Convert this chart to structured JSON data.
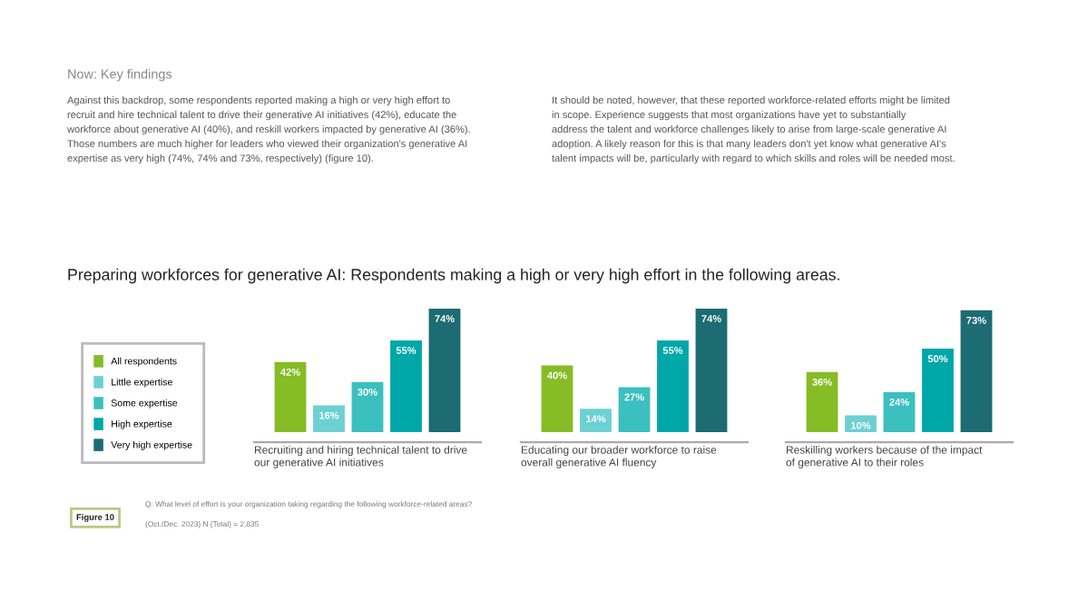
{
  "chart_data": [
    {
      "type": "bar",
      "title": "Preparing workforces for generative AI: Respondents making a high or very high effort in the following areas.",
      "annotations": [
        "Now: Key findings",
        "Against this backdrop, some respondents reported making a high or very high effort to\nrecruit and hire technical talent to drive their generative AI initiatives (42%), educate the\nworkforce about generative AI (40%), and reskill workers impacted by generative AI (36%).\nThose numbers are much higher for leaders who viewed their organization's generative AI\nexpertise as very high (74%, 74% and 73%, respectively) (figure 10).",
        "It should be noted, however, that these reported workforce-related efforts might be limited\nin scope. Experience suggests that most organizations have yet to substantially\naddress the talent and workforce challenges likely to arise from large-scale generative AI\nadoption. A likely reason for this is that many leaders don't yet know what generative AI's\ntalent impacts will be, particularly with regard to which skills and roles will be needed most.",
        "Figure 10",
        "Q: What level of effort is your organization taking regarding the following workforce-related areas?",
        "(Oct./Dec. 2023) N (Total) = 2,835"
      ],
      "categories": [
        null
      ],
      "xlabel": "Recruiting and hiring technical talent to drive\nour generative AI initiatives",
      "data_labels": true,
      "legend": "left",
      "series": [
        {
          "name": "All respondents",
          "color": "#86bc25",
          "values": [
            42
          ],
          "value_labels": [
            "42%"
          ]
        },
        {
          "name": "Little expertise",
          "color": "#6dd0d3",
          "values": [
            16
          ],
          "value_labels": [
            "16%"
          ]
        },
        {
          "name": "Some expertise",
          "color": "#3cbfbf",
          "values": [
            30
          ],
          "value_labels": [
            "30%"
          ]
        },
        {
          "name": "High expertise",
          "color": "#00a7a8",
          "values": [
            55
          ],
          "value_labels": [
            "55%"
          ]
        },
        {
          "name": "Very high expertise",
          "color": "#1d6b73",
          "values": [
            74
          ],
          "value_labels": [
            "74%"
          ]
        }
      ]
    },
    {
      "type": "bar",
      "categories": [
        null
      ],
      "xlabel": "Educating our broader workforce to raise\noverall generative AI fluency",
      "data_labels": true,
      "series": [
        {
          "color": "#86bc25",
          "values": [
            40
          ],
          "value_labels": [
            "40%"
          ]
        },
        {
          "color": "#6dd0d3",
          "values": [
            14
          ],
          "value_labels": [
            "14%"
          ]
        },
        {
          "color": "#3cbfbf",
          "values": [
            27
          ],
          "value_labels": [
            "27%"
          ]
        },
        {
          "color": "#00a7a8",
          "values": [
            55
          ],
          "value_labels": [
            "55%"
          ]
        },
        {
          "color": "#1d6b73",
          "values": [
            74
          ],
          "value_labels": [
            "74%"
          ]
        }
      ]
    },
    {
      "type": "bar",
      "categories": [
        null
      ],
      "xlabel": "Reskilling workers because of the impact\nof generative AI to their roles",
      "data_labels": true,
      "series": [
        {
          "color": "#86bc25",
          "values": [
            36
          ],
          "value_labels": [
            "36%"
          ]
        },
        {
          "color": "#6dd0d3",
          "values": [
            10
          ],
          "value_labels": [
            "10%"
          ]
        },
        {
          "color": "#3cbfbf",
          "values": [
            24
          ],
          "value_labels": [
            "24%"
          ]
        },
        {
          "color": "#00a7a8",
          "values": [
            50
          ],
          "value_labels": [
            "50%"
          ]
        },
        {
          "color": "#1d6b73",
          "values": [
            73
          ],
          "value_labels": [
            "73%"
          ]
        }
      ]
    }
  ]
}
